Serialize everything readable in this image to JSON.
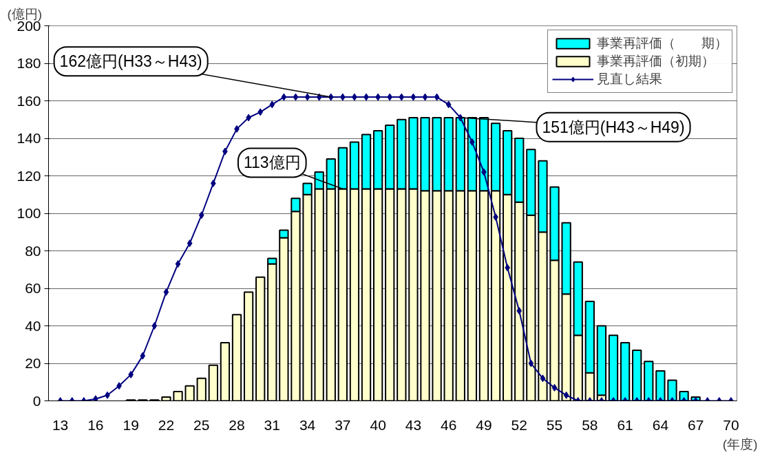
{
  "chart_data": {
    "type": "bar",
    "stacked": true,
    "xlabel": "(年度)",
    "ylabel": "(億円)",
    "x": [
      13,
      14,
      15,
      16,
      17,
      18,
      19,
      20,
      21,
      22,
      23,
      24,
      25,
      26,
      27,
      28,
      29,
      30,
      31,
      32,
      33,
      34,
      35,
      36,
      37,
      38,
      39,
      40,
      41,
      42,
      43,
      44,
      45,
      46,
      47,
      48,
      49,
      50,
      51,
      52,
      53,
      54,
      55,
      56,
      57,
      58,
      59,
      60,
      61,
      62,
      63,
      64,
      65,
      66,
      67,
      68,
      69,
      70
    ],
    "series": [
      {
        "name": "事業再評価（初期）",
        "color": "#ffffcc",
        "values": [
          null,
          null,
          null,
          null,
          null,
          null,
          0.5,
          0.5,
          0.5,
          2,
          5,
          8,
          12,
          19,
          31,
          46,
          58,
          66,
          73,
          87,
          101,
          110,
          113,
          113,
          113,
          113,
          113,
          113,
          113,
          113,
          113,
          112,
          112,
          112,
          112,
          112,
          112,
          112,
          110,
          106,
          99,
          90,
          75,
          57,
          35,
          15,
          3,
          null,
          null,
          null,
          null,
          null,
          null,
          null,
          null,
          null,
          null,
          null
        ]
      },
      {
        "name": "事業再評価（　　期）",
        "color": "#00ffff",
        "values": [
          null,
          null,
          null,
          null,
          null,
          null,
          null,
          null,
          null,
          null,
          null,
          null,
          null,
          null,
          null,
          null,
          null,
          null,
          3,
          4,
          7,
          6,
          9,
          16,
          22,
          25,
          29,
          31,
          34,
          37,
          38,
          39,
          39,
          39,
          39,
          39,
          39,
          36,
          34,
          34,
          35,
          38,
          39,
          38,
          39,
          38,
          37,
          35,
          31,
          27,
          21,
          16,
          11,
          5,
          2,
          null,
          null,
          null
        ]
      },
      {
        "name": "見直し結果",
        "type": "line",
        "color": "#000080",
        "marker": "diamond",
        "values": [
          0,
          0,
          0,
          1,
          3,
          8,
          14,
          24,
          40,
          58,
          73,
          84,
          99,
          116,
          133,
          145,
          151,
          154,
          158,
          162,
          162,
          162,
          162,
          162,
          162,
          162,
          162,
          162,
          162,
          162,
          162,
          162,
          162,
          158,
          151,
          138,
          122,
          98,
          71,
          48,
          20,
          12,
          7,
          3,
          0,
          0,
          0,
          0,
          0,
          0,
          0,
          0,
          0,
          0,
          0,
          0,
          0,
          0
        ]
      }
    ],
    "xlim": [
      12,
      70.5
    ],
    "xticks": [
      13,
      16,
      19,
      22,
      25,
      28,
      31,
      34,
      37,
      40,
      43,
      46,
      49,
      52,
      55,
      58,
      61,
      64,
      67,
      70
    ],
    "ylim": [
      0,
      200
    ],
    "yticks": [
      0,
      20,
      40,
      60,
      80,
      100,
      120,
      140,
      160,
      180,
      200
    ],
    "grid": "y",
    "legend": "top right",
    "annotations": [
      {
        "text": "162億円(H33～H43)",
        "x": 36,
        "y": 162
      },
      {
        "text": "113億円",
        "x": 37,
        "y": 113
      },
      {
        "text": "151億円(H43～H49)",
        "x": 47,
        "y": 151
      }
    ]
  }
}
